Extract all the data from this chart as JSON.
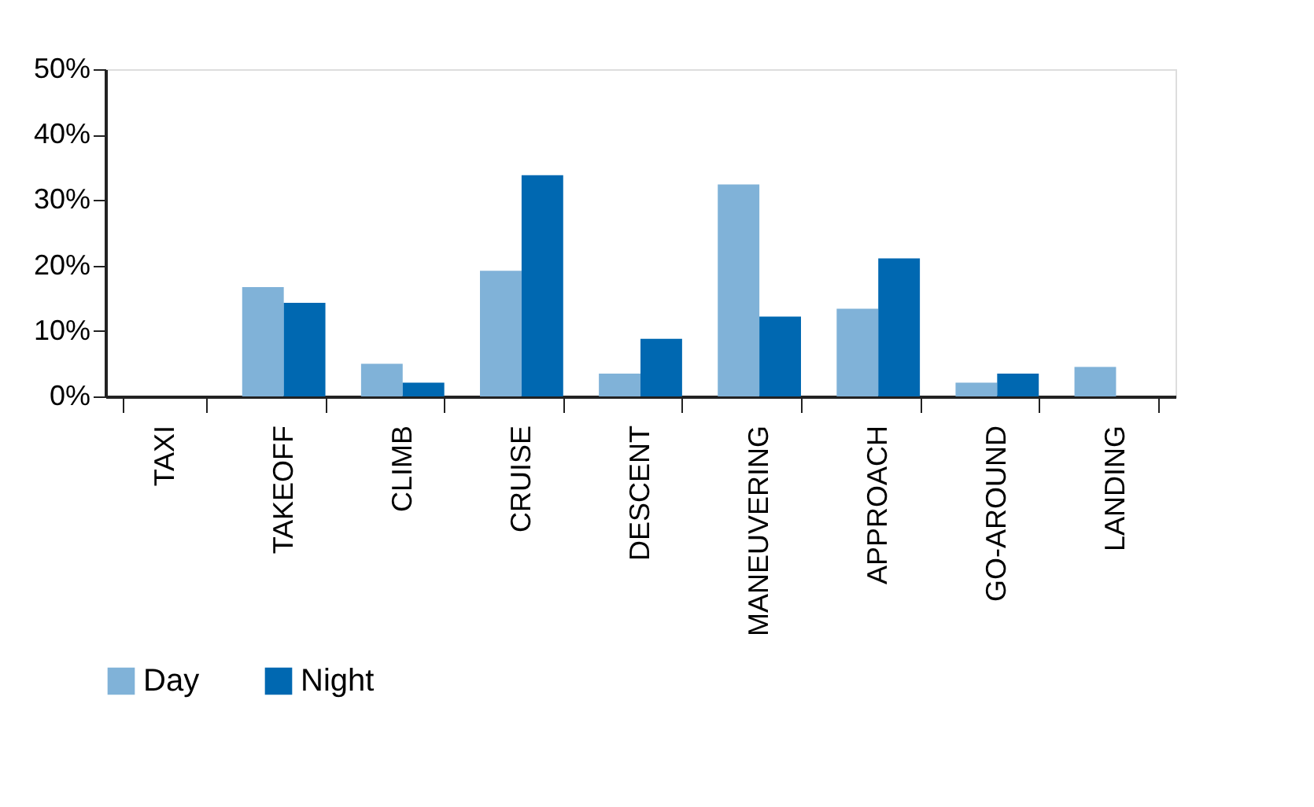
{
  "chart_data": {
    "type": "bar",
    "categories": [
      "TAXI",
      "TAKEOFF",
      "CLIMB",
      "CRUISE",
      "DESCENT",
      "MANEUVERING",
      "APPROACH",
      "GO-AROUND",
      "LANDING"
    ],
    "series": [
      {
        "name": "Day",
        "color": "#80b2d8",
        "values": [
          0,
          16.7,
          5.0,
          19.2,
          3.5,
          32.4,
          13.4,
          2.1,
          4.5
        ]
      },
      {
        "name": "Night",
        "color": "#0068b1",
        "values": [
          0,
          14.3,
          2.1,
          33.8,
          8.8,
          12.2,
          21.1,
          3.5,
          0
        ]
      }
    ],
    "ylim": [
      0,
      50
    ],
    "yticks": [
      {
        "value": 0,
        "label": "0%"
      },
      {
        "value": 10,
        "label": "10%"
      },
      {
        "value": 20,
        "label": "20%"
      },
      {
        "value": 30,
        "label": "30%"
      },
      {
        "value": 40,
        "label": "40%"
      },
      {
        "value": 50,
        "label": "50%"
      }
    ],
    "grid": false,
    "legend": "bottom"
  }
}
